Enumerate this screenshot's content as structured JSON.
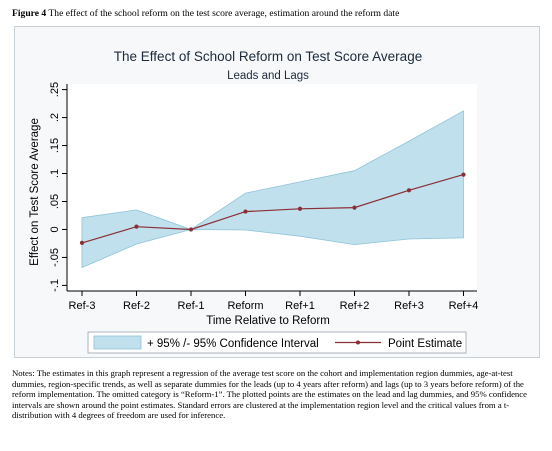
{
  "figure": {
    "label": "Figure 4",
    "caption": "The effect of the school reform on the test score average, estimation around the reform date"
  },
  "notes": "Notes: The estimates in this graph represent a regression of the average test score on the cohort and implementation region dummies, age-at-test dummies, region-specific trends, as well as separate dummies for the leads (up to 4 years after reform) and lags (up to 3 years before reform) of the reform implementation. The omitted category is “Reform-1”. The plotted points are the estimates on the lead and lag dummies, and 95% confidence intervals are shown around the point estimates. Standard errors are clustered at the implementation region level and the critical values from a t-distribution with 4 degrees of freedom are used for inference.",
  "chart_data": {
    "type": "line",
    "title": "The Effect of School Reform on Test Score Average",
    "subtitle": "Leads and Lags",
    "xlabel": "Time Relative to Reform",
    "ylabel": "Effect on Test Score Average",
    "categories": [
      "Ref-3",
      "Ref-2",
      "Ref-1",
      "Reform",
      "Ref+1",
      "Ref+2",
      "Ref+3",
      "Ref+4"
    ],
    "yticks": [
      "-.1",
      "-.05",
      "0",
      ".05",
      ".1",
      ".15",
      ".2",
      ".25"
    ],
    "yticks_values": [
      -0.1,
      -0.05,
      0,
      0.05,
      0.1,
      0.15,
      0.2,
      0.25
    ],
    "ylim": [
      -0.11,
      0.26
    ],
    "grid": false,
    "legend_position": "bottom",
    "series": [
      {
        "name": "+ 95% /- 95% Confidence Interval",
        "type": "band",
        "lower": [
          -0.068,
          -0.026,
          0,
          -0.001,
          -0.012,
          -0.027,
          -0.017,
          -0.015
        ],
        "upper": [
          0.021,
          0.035,
          0,
          0.065,
          0.085,
          0.105,
          0.158,
          0.212
        ],
        "color": "#bfe0ec",
        "stroke": "#8fc3d8"
      },
      {
        "name": "Point Estimate",
        "type": "line",
        "values": [
          -0.024,
          0.005,
          0,
          0.032,
          0.037,
          0.039,
          0.07,
          0.098
        ],
        "color": "#8b2e36"
      }
    ]
  }
}
